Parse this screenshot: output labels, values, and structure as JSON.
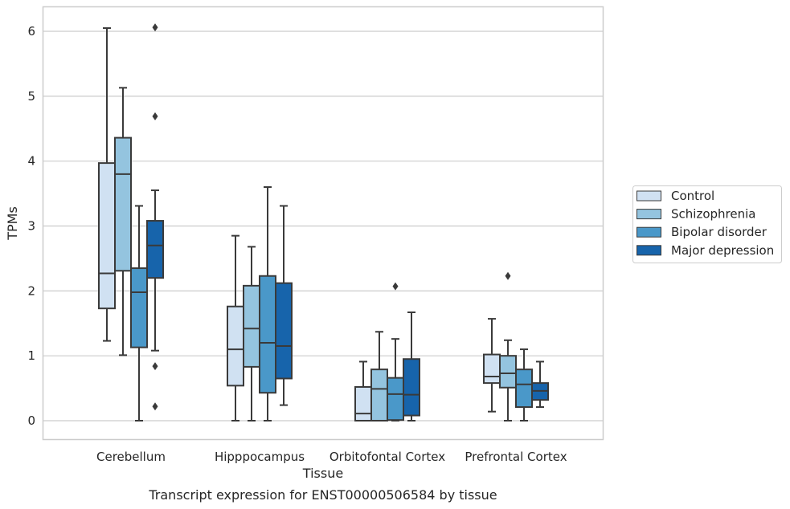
{
  "chart_data": {
    "type": "box",
    "title": "",
    "caption": "Transcript expression for ENST00000506584 by tissue",
    "xlabel": "Tissue",
    "ylabel": "TPMs",
    "ylim": [
      -0.3,
      6.38
    ],
    "yticks": [
      0,
      1,
      2,
      3,
      4,
      5,
      6
    ],
    "grid": "horizontal",
    "legend_placement": "right",
    "categories": [
      "Cerebellum",
      "Hipppocampus",
      "Orbitofontal Cortex",
      "Prefrontal Cortex"
    ],
    "series": [
      {
        "name": "Control",
        "color": "#d0e1f2",
        "boxes": [
          {
            "whislo": 1.23,
            "q1": 1.73,
            "med": 2.27,
            "q3": 3.97,
            "whishi": 6.05,
            "fliers": []
          },
          {
            "whislo": 0.0,
            "q1": 0.54,
            "med": 1.1,
            "q3": 1.76,
            "whishi": 2.85,
            "fliers": []
          },
          {
            "whislo": 0.0,
            "q1": 0.0,
            "med": 0.11,
            "q3": 0.52,
            "whishi": 0.91,
            "fliers": []
          },
          {
            "whislo": 0.14,
            "q1": 0.58,
            "med": 0.68,
            "q3": 1.02,
            "whishi": 1.57,
            "fliers": []
          }
        ]
      },
      {
        "name": "Schizophrenia",
        "color": "#94c4df",
        "boxes": [
          {
            "whislo": 1.01,
            "q1": 2.31,
            "med": 3.8,
            "q3": 4.36,
            "whishi": 5.13,
            "fliers": []
          },
          {
            "whislo": 0.0,
            "q1": 0.83,
            "med": 1.42,
            "q3": 2.08,
            "whishi": 2.68,
            "fliers": []
          },
          {
            "whislo": 0.0,
            "q1": 0.0,
            "med": 0.49,
            "q3": 0.79,
            "whishi": 1.37,
            "fliers": []
          },
          {
            "whislo": 0.0,
            "q1": 0.51,
            "med": 0.73,
            "q3": 1.0,
            "whishi": 1.24,
            "fliers": [
              2.23
            ]
          }
        ]
      },
      {
        "name": "Bipolar disorder",
        "color": "#4a98c9",
        "boxes": [
          {
            "whislo": 0.0,
            "q1": 1.13,
            "med": 1.98,
            "q3": 2.35,
            "whishi": 3.31,
            "fliers": []
          },
          {
            "whislo": 0.0,
            "q1": 0.43,
            "med": 1.2,
            "q3": 2.23,
            "whishi": 3.6,
            "fliers": []
          },
          {
            "whislo": 0.0,
            "q1": 0.01,
            "med": 0.41,
            "q3": 0.66,
            "whishi": 1.26,
            "fliers": [
              2.07
            ]
          },
          {
            "whislo": 0.0,
            "q1": 0.21,
            "med": 0.56,
            "q3": 0.79,
            "whishi": 1.1,
            "fliers": []
          }
        ]
      },
      {
        "name": "Major depression",
        "color": "#1764ab",
        "boxes": [
          {
            "whislo": 1.08,
            "q1": 2.2,
            "med": 2.7,
            "q3": 3.08,
            "whishi": 3.55,
            "fliers": [
              6.06,
              4.69,
              0.84,
              0.22
            ]
          },
          {
            "whislo": 0.24,
            "q1": 0.65,
            "med": 1.15,
            "q3": 2.12,
            "whishi": 3.31,
            "fliers": []
          },
          {
            "whislo": 0.0,
            "q1": 0.08,
            "med": 0.4,
            "q3": 0.95,
            "whishi": 1.67,
            "fliers": []
          },
          {
            "whislo": 0.21,
            "q1": 0.32,
            "med": 0.46,
            "q3": 0.58,
            "whishi": 0.91,
            "fliers": []
          }
        ]
      }
    ]
  }
}
